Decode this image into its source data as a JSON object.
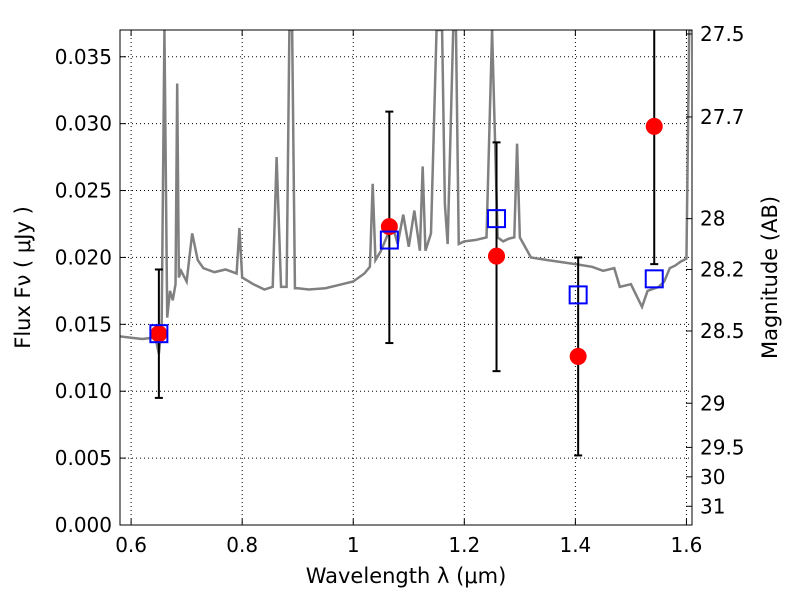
{
  "chart_data": {
    "type": "scatter",
    "xlabel": "Wavelength  λ (μm)",
    "ylabel": "Flux  Fν  ( μJy )",
    "y2label": "Magnitude (AB)",
    "xlim": [
      0.58,
      1.61
    ],
    "ylim": [
      0.0,
      0.037
    ],
    "grid": true,
    "x_ticks": [
      0.6,
      0.8,
      1.0,
      1.2,
      1.4,
      1.6
    ],
    "x_tick_labels": [
      "0.6",
      "0.8",
      "1",
      "1.2",
      "1.4",
      "1.6"
    ],
    "y_ticks": [
      0.0,
      0.005,
      0.01,
      0.015,
      0.02,
      0.025,
      0.03,
      0.035
    ],
    "y_tick_labels": [
      "0.000",
      "0.005",
      "0.010",
      "0.015",
      "0.020",
      "0.025",
      "0.030",
      "0.035"
    ],
    "y2_ticks": [
      {
        "label": "27.5",
        "flux": 0.0367
      },
      {
        "label": "27.7",
        "flux": 0.0305
      },
      {
        "label": "28",
        "flux": 0.0229
      },
      {
        "label": "28.2",
        "flux": 0.0191
      },
      {
        "label": "28.5",
        "flux": 0.0145
      },
      {
        "label": "29",
        "flux": 0.0091
      },
      {
        "label": "29.5",
        "flux": 0.0058
      },
      {
        "label": "30",
        "flux": 0.0036
      },
      {
        "label": "31",
        "flux": 0.0014
      }
    ],
    "model_spectrum": {
      "color": "#808080",
      "x": [
        0.58,
        0.6,
        0.62,
        0.64,
        0.645,
        0.65,
        0.655,
        0.66,
        0.665,
        0.67,
        0.675,
        0.68,
        0.683,
        0.686,
        0.69,
        0.7,
        0.71,
        0.72,
        0.73,
        0.75,
        0.77,
        0.79,
        0.795,
        0.8,
        0.82,
        0.84,
        0.855,
        0.862,
        0.87,
        0.88,
        0.885,
        0.89,
        0.895,
        0.9,
        0.92,
        0.95,
        0.98,
        1.0,
        1.02,
        1.03,
        1.035,
        1.04,
        1.05,
        1.06,
        1.07,
        1.08,
        1.09,
        1.1,
        1.11,
        1.12,
        1.125,
        1.13,
        1.14,
        1.15,
        1.16,
        1.165,
        1.17,
        1.18,
        1.185,
        1.19,
        1.2,
        1.22,
        1.24,
        1.25,
        1.26,
        1.27,
        1.28,
        1.29,
        1.295,
        1.3,
        1.32,
        1.35,
        1.4,
        1.43,
        1.45,
        1.47,
        1.48,
        1.5,
        1.52,
        1.53,
        1.55,
        1.56,
        1.57,
        1.58,
        1.59,
        1.6,
        1.605,
        1.61
      ],
      "y": [
        0.0141,
        0.014,
        0.0139,
        0.014,
        0.0138,
        0.0128,
        0.0148,
        0.037,
        0.0155,
        0.0175,
        0.0168,
        0.018,
        0.033,
        0.0185,
        0.019,
        0.0182,
        0.0218,
        0.0198,
        0.0192,
        0.0189,
        0.0191,
        0.0188,
        0.0222,
        0.0185,
        0.018,
        0.0176,
        0.0178,
        0.0275,
        0.0178,
        0.0178,
        0.037,
        0.037,
        0.0177,
        0.0177,
        0.0176,
        0.0177,
        0.018,
        0.0182,
        0.0188,
        0.0193,
        0.0255,
        0.0198,
        0.0205,
        0.0215,
        0.0225,
        0.021,
        0.0232,
        0.0208,
        0.0235,
        0.0205,
        0.0268,
        0.0205,
        0.0218,
        0.037,
        0.037,
        0.024,
        0.021,
        0.037,
        0.037,
        0.021,
        0.0212,
        0.0213,
        0.0215,
        0.037,
        0.0215,
        0.0212,
        0.0214,
        0.0215,
        0.0285,
        0.0215,
        0.02,
        0.0198,
        0.0195,
        0.0193,
        0.019,
        0.0192,
        0.0178,
        0.018,
        0.0163,
        0.0175,
        0.0178,
        0.0182,
        0.0192,
        0.0194,
        0.0197,
        0.0199,
        0.037,
        0.037
      ]
    },
    "series": [
      {
        "marker": "circle",
        "color": "#ff0000",
        "points": [
          {
            "x": 0.65,
            "y": 0.0143,
            "yerr_low": 0.0095,
            "yerr_high": 0.0191
          },
          {
            "x": 1.065,
            "y": 0.0223,
            "yerr_low": 0.0136,
            "yerr_high": 0.0309
          },
          {
            "x": 1.258,
            "y": 0.0201,
            "yerr_low": 0.0115,
            "yerr_high": 0.0286
          },
          {
            "x": 1.405,
            "y": 0.0126,
            "yerr_low": 0.0052,
            "yerr_high": 0.02
          },
          {
            "x": 1.542,
            "y": 0.0298,
            "yerr_low": 0.0195,
            "yerr_high": 0.0375
          }
        ]
      },
      {
        "marker": "open-square",
        "color": "#0000ff",
        "points": [
          {
            "x": 0.65,
            "y": 0.0143
          },
          {
            "x": 1.065,
            "y": 0.0213
          },
          {
            "x": 1.258,
            "y": 0.0229
          },
          {
            "x": 1.405,
            "y": 0.0172
          },
          {
            "x": 1.542,
            "y": 0.0184
          }
        ]
      }
    ]
  }
}
